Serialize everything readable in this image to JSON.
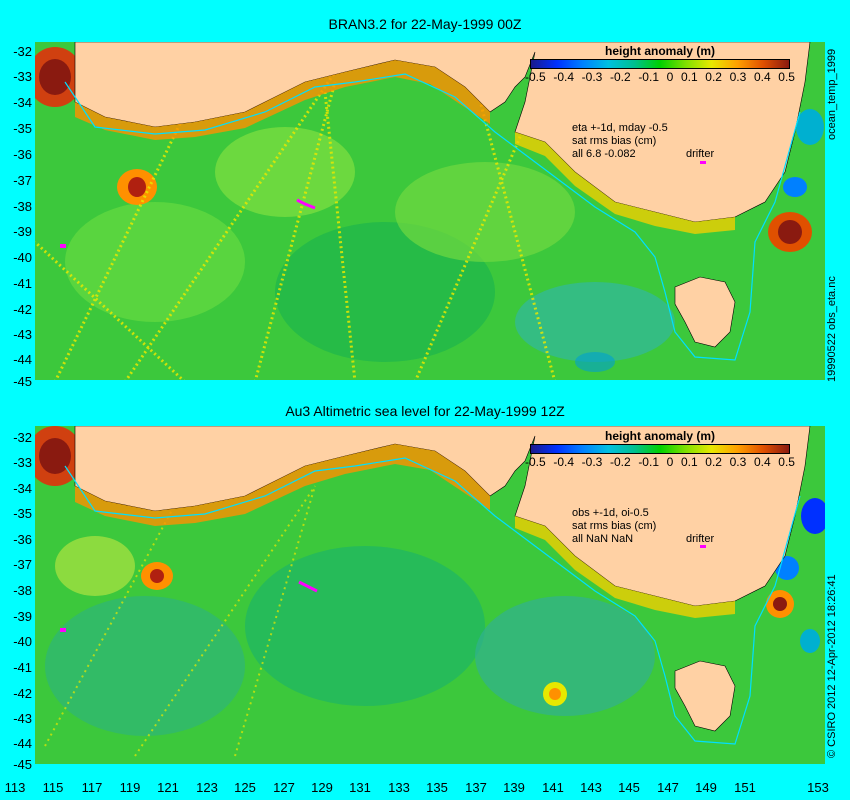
{
  "top_panel": {
    "title": "BRAN3.2 for 22-May-1999 00Z",
    "legend_title": "height anomaly (m)",
    "info": "eta +-1d, mday -0.5\nsat rms bias (cm)\nall 6.8 -0.082",
    "drifter_label": "drifter",
    "side_label": "ocean_temp_1999",
    "side_label_2": "19990522 obs_eta.nc"
  },
  "bottom_panel": {
    "title": "Au3 Altimetric sea level  for 22-May-1999 12Z",
    "legend_title": "height anomaly (m)",
    "info": "obs +-1d, oi-0.5\nsat rms bias (cm)\nall NaN NaN",
    "drifter_label": "drifter",
    "side_label": "© CSIRO 2012  12-Apr-2012 18:26:41"
  },
  "colorbar_ticks": [
    "-0.5",
    "-0.4",
    "-0.3",
    "-0.2",
    "-0.1",
    "0",
    "0.1",
    "0.2",
    "0.3",
    "0.4",
    "0.5"
  ],
  "y_ticks": [
    "-32",
    "-33",
    "-34",
    "-35",
    "-36",
    "-37",
    "-38",
    "-39",
    "-40",
    "-41",
    "-42",
    "-43",
    "-44",
    "-45"
  ],
  "x_ticks": [
    "113",
    "115",
    "117",
    "119",
    "121",
    "123",
    "125",
    "127",
    "129",
    "131",
    "133",
    "135",
    "137",
    "139",
    "141",
    "143",
    "145",
    "147",
    "149",
    "151",
    "153"
  ],
  "colors": {
    "background": "#00ffff",
    "land": "#ffd1a4",
    "ocean_base": "#3cc83c",
    "drifter": "#ff00ff"
  }
}
